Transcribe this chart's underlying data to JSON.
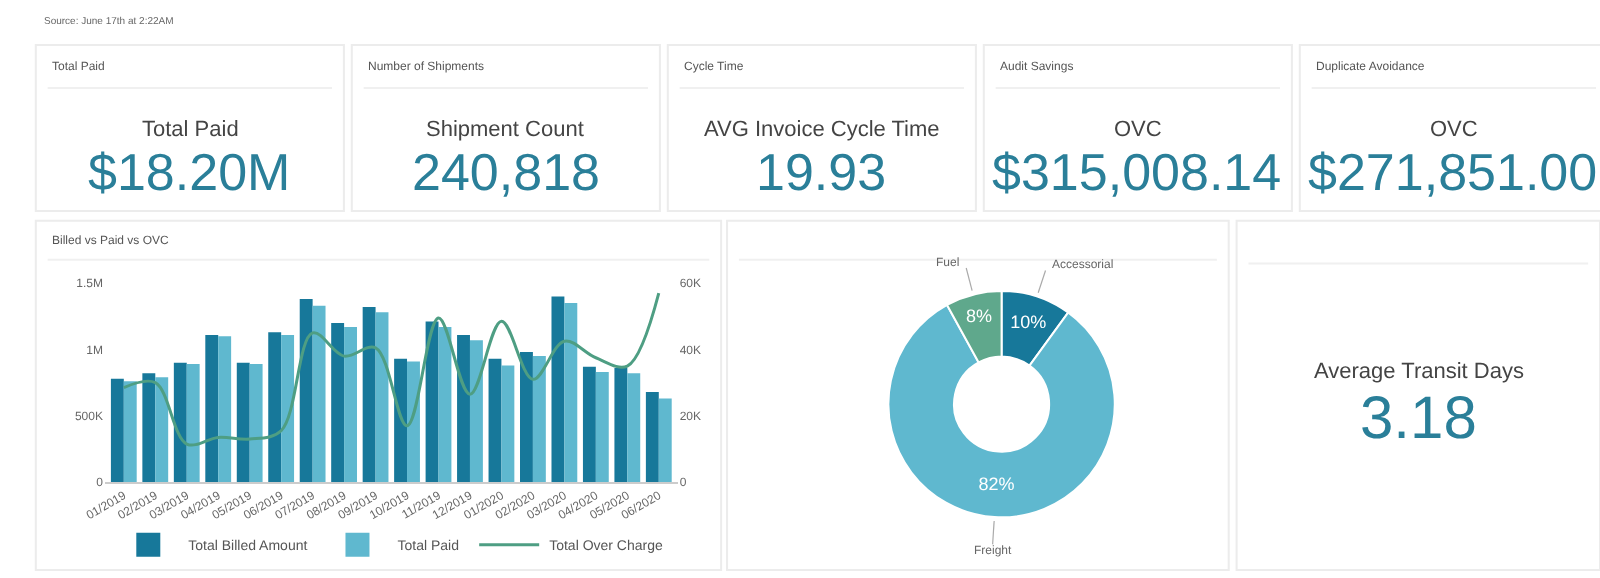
{
  "chart_data": [
    {
      "type": "other",
      "annotations": [
        "Source: June 17th at 2:22AM"
      ]
    },
    {
      "type": "other",
      "title": "Total Paid",
      "subtitle": "Total Paid",
      "annotations": [
        "$18.20M"
      ]
    },
    {
      "type": "other",
      "title": "Number of Shipments",
      "subtitle": "Shipment Count",
      "annotations": [
        "240,818"
      ]
    },
    {
      "type": "other",
      "title": "Cycle Time",
      "subtitle": "AVG Invoice Cycle Time",
      "annotations": [
        "19.93"
      ]
    },
    {
      "type": "other",
      "title": "Audit Savings",
      "subtitle": "OVC",
      "annotations": [
        "$315,008.14"
      ]
    },
    {
      "type": "other",
      "title": "Duplicate Avoidance",
      "subtitle": "OVC",
      "annotations": [
        "$271,851.00"
      ]
    },
    {
      "type": "bar",
      "title": "Billed vs Paid vs OVC",
      "categories": [
        "01/2019",
        "02/2019",
        "03/2019",
        "04/2019",
        "05/2019",
        "06/2019",
        "07/2019",
        "08/2019",
        "09/2019",
        "10/2019",
        "11/2019",
        "12/2019",
        "01/2020",
        "02/2020",
        "03/2020",
        "04/2020",
        "05/2020",
        "06/2020"
      ],
      "series": [
        {
          "name": "Total Billed Amount",
          "color": "#17789a",
          "values": [
            780000,
            820000,
            900000,
            1110000,
            900000,
            1130000,
            1380000,
            1200000,
            1320000,
            930000,
            1210000,
            1110000,
            930000,
            980000,
            1400000,
            870000,
            860000,
            680000
          ]
        },
        {
          "name": "Total Paid",
          "color": "#5fb8cf",
          "values": [
            760000,
            790000,
            890000,
            1100000,
            890000,
            1110000,
            1330000,
            1170000,
            1280000,
            910000,
            1170000,
            1070000,
            880000,
            950000,
            1350000,
            830000,
            820000,
            630000
          ]
        },
        {
          "name": "Total Over Charge",
          "type": "line",
          "axis": "y2",
          "color": "#4e9e83",
          "values": [
            28500,
            30000,
            11500,
            13500,
            13000,
            15500,
            45000,
            38000,
            40500,
            17000,
            49500,
            26500,
            48500,
            31000,
            42500,
            37500,
            35000,
            57000
          ]
        }
      ],
      "ylim": [
        0,
        1500000
      ],
      "yticks": [
        0,
        {
          "value": 500000,
          "label": "500K"
        },
        {
          "value": 1000000,
          "label": "1M"
        },
        {
          "value": 1500000,
          "label": "1.5M"
        }
      ],
      "y2lim": [
        0,
        60000
      ],
      "y2ticks": [
        0,
        {
          "value": 20000,
          "label": "20K"
        },
        {
          "value": 40000,
          "label": "40K"
        },
        {
          "value": 60000,
          "label": "60K"
        }
      ],
      "legend": "bottom",
      "marker": "none",
      "line_style": "solid"
    },
    {
      "type": "donut",
      "categories": [
        "Accessorial",
        "Freight",
        "Fuel"
      ],
      "values": [
        10,
        82,
        8
      ],
      "value_labels": [
        "10%",
        "82%",
        "8%"
      ],
      "colors": [
        "#17789a",
        "#5fb8cf",
        "#5fa88c"
      ]
    },
    {
      "type": "other",
      "subtitle": "Average Transit Days",
      "annotations": [
        "3.18"
      ]
    }
  ]
}
